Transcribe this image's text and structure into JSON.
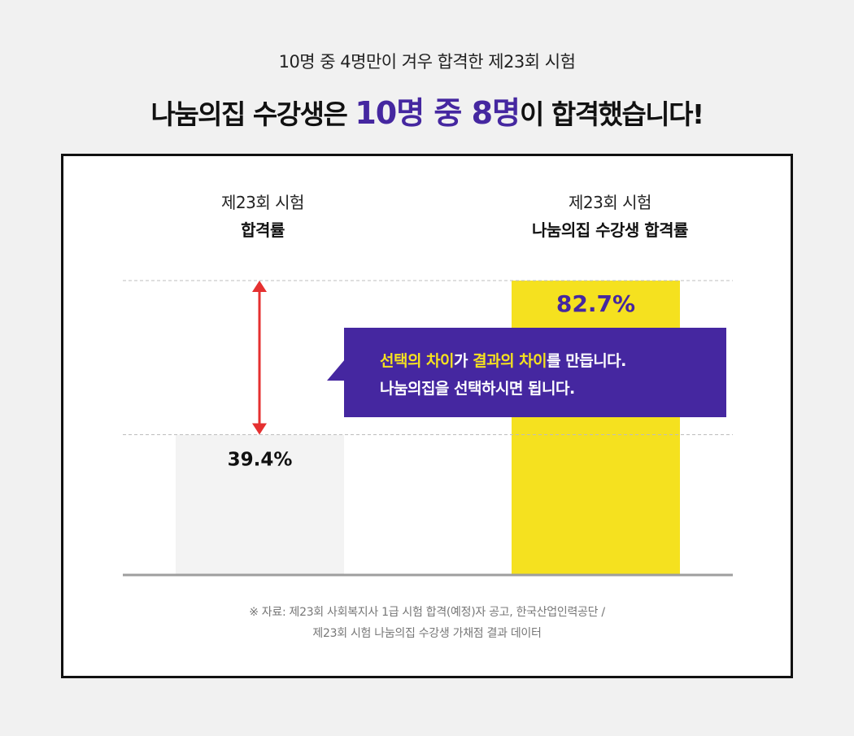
{
  "header": {
    "subtitle": "10명 중 4명만이 겨우 합격한 제23회 시험",
    "title_pre": "나눔의집 수강생은 ",
    "title_accent": "10명 중 8명",
    "title_post": "이 합격했습니다!"
  },
  "columns": {
    "left": {
      "line1": "제23회 시험",
      "line2": "합격률"
    },
    "right": {
      "line1": "제23회 시험",
      "line2": "나눔의집 수강생 합격률"
    }
  },
  "chart_data": {
    "type": "bar",
    "categories": [
      "제23회 시험 합격률",
      "제23회 시험 나눔의집 수강생 합격률"
    ],
    "values": [
      39.4,
      82.7
    ],
    "value_labels": [
      "39.4%",
      "82.7%"
    ],
    "colors": [
      "#f3f3f3",
      "#f5e11f"
    ],
    "value_label_colors": [
      "#111111",
      "#4527a0"
    ],
    "arrow_color": "#e53030",
    "ylim": [
      0,
      82.7
    ],
    "grid": "dashed reference lines at the two values",
    "title": "",
    "xlabel": "",
    "ylabel": ""
  },
  "callout": {
    "line1_hl1": "선택의 차이",
    "line1_t1": "가 ",
    "line1_hl2": "결과의 차이",
    "line1_t2": "를 만듭니다.",
    "line2": "나눔의집을 선택하시면 됩니다."
  },
  "source": {
    "line1": "※ 자료: 제23회 사회복지사 1급 시험 합격(예정)자 공고, 한국산업인력공단 /",
    "line2": "제23회 시험 나눔의집 수강생 가채점 결과 데이터"
  },
  "colors": {
    "accent": "#4527a0",
    "highlight": "#f5e11f",
    "frame": "#111111"
  }
}
